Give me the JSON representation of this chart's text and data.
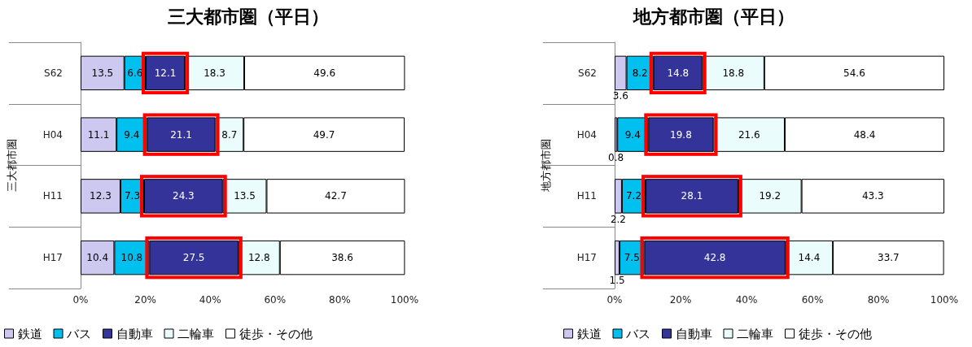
{
  "chart_data": [
    {
      "type": "bar",
      "orientation": "horizontal",
      "stacked": true,
      "title": "三大都市圏（平日）",
      "ylabel": "三大都市圏",
      "categories": [
        "S62",
        "H04",
        "H11",
        "H17"
      ],
      "series": [
        {
          "name": "鉄道",
          "color": "#ccc8f0",
          "values": [
            13.5,
            11.1,
            12.3,
            10.4
          ]
        },
        {
          "name": "バス",
          "color": "#00c0f0",
          "values": [
            6.6,
            9.4,
            7.3,
            10.8
          ]
        },
        {
          "name": "自動車",
          "color": "#333399",
          "values": [
            12.1,
            21.1,
            24.3,
            27.5
          ]
        },
        {
          "name": "二輪車",
          "color": "#eafcfc",
          "values": [
            18.3,
            8.7,
            13.5,
            12.8
          ]
        },
        {
          "name": "徒歩・その他",
          "color": "#ffffff",
          "values": [
            49.6,
            49.7,
            42.7,
            38.6
          ]
        }
      ],
      "xlim": [
        0,
        100
      ],
      "xticks": [
        {
          "value": 0,
          "label": "0%"
        },
        {
          "value": 20,
          "label": "20%"
        },
        {
          "value": 40,
          "label": "40%"
        },
        {
          "value": 60,
          "label": "60%"
        },
        {
          "value": 80,
          "label": "80%"
        },
        {
          "value": 100,
          "label": "100%"
        }
      ],
      "data_labels": true,
      "legend": "bottom",
      "grid": false
    },
    {
      "type": "bar",
      "orientation": "horizontal",
      "stacked": true,
      "title": "地方都市圏（平日）",
      "ylabel": "地方都市圏",
      "categories": [
        "S62",
        "H04",
        "H11",
        "H17"
      ],
      "series": [
        {
          "name": "鉄道",
          "color": "#ccc8f0",
          "values": [
            3.6,
            0.8,
            2.2,
            1.5
          ]
        },
        {
          "name": "バス",
          "color": "#00c0f0",
          "values": [
            8.2,
            9.4,
            7.2,
            7.5
          ]
        },
        {
          "name": "自動車",
          "color": "#333399",
          "values": [
            14.8,
            19.8,
            28.1,
            42.8
          ]
        },
        {
          "name": "二輪車",
          "color": "#eafcfc",
          "values": [
            18.8,
            21.6,
            19.2,
            14.4
          ]
        },
        {
          "name": "徒歩・その他",
          "color": "#ffffff",
          "values": [
            54.6,
            48.4,
            43.3,
            33.7
          ]
        }
      ],
      "xlim": [
        0,
        100
      ],
      "xticks": [
        {
          "value": 0,
          "label": "0%"
        },
        {
          "value": 20,
          "label": "20%"
        },
        {
          "value": 40,
          "label": "40%"
        },
        {
          "value": 60,
          "label": "60%"
        },
        {
          "value": 80,
          "label": "80%"
        },
        {
          "value": 100,
          "label": "100%"
        }
      ],
      "data_labels": true,
      "legend": "bottom",
      "grid": false
    }
  ]
}
